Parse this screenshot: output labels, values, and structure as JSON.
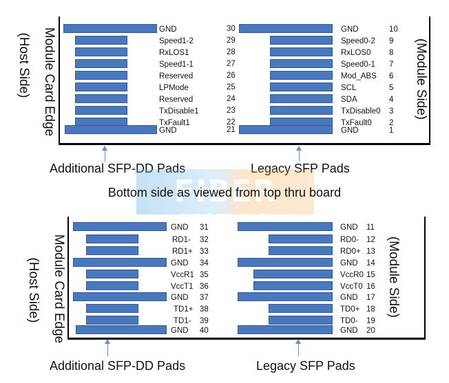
{
  "watermark": "FIBER WDM",
  "top": {
    "left_side_label": "Module Card Edge",
    "left_side_sublabel": "(Host Side)",
    "right_side_label": "(Module Side)",
    "left_caption": "Additional SFP-DD Pads",
    "right_caption": "Legacy SFP Pads",
    "left_pads": [
      {
        "label": "GND",
        "pin": "30"
      },
      {
        "label": "Speed1-2",
        "pin": "29"
      },
      {
        "label": "RxLOS1",
        "pin": "28"
      },
      {
        "label": "Speed1-1",
        "pin": "27"
      },
      {
        "label": "Reserved",
        "pin": "26"
      },
      {
        "label": "LPMode",
        "pin": "25"
      },
      {
        "label": "Reserved",
        "pin": "24"
      },
      {
        "label": "TxDisable1",
        "pin": "23"
      },
      {
        "label": "TxFault1",
        "pin": "22"
      },
      {
        "label": "GND",
        "pin": "21"
      }
    ],
    "right_pads": [
      {
        "label": "GND",
        "pin": "10"
      },
      {
        "label": "Speed0-2",
        "pin": "9"
      },
      {
        "label": "RxLOS0",
        "pin": "8"
      },
      {
        "label": "Speed0-1",
        "pin": "7"
      },
      {
        "label": "Mod_ABS",
        "pin": "6"
      },
      {
        "label": "SCL",
        "pin": "5"
      },
      {
        "label": "SDA",
        "pin": "4"
      },
      {
        "label": "TxDisable0",
        "pin": "3"
      },
      {
        "label": "TxFault0",
        "pin": "2"
      },
      {
        "label": "GND",
        "pin": "1"
      }
    ]
  },
  "subtitle": "Bottom side as viewed from top thru board",
  "bottom": {
    "left_side_label": "Module Card Edge",
    "left_side_sublabel": "(Host Side)",
    "right_side_label": "(Module Side)",
    "left_caption": "Additional SFP-DD Pads",
    "right_caption": "Legacy SFP Pads",
    "left_pads": [
      {
        "label": "GND",
        "pin": "31"
      },
      {
        "label": "RD1-",
        "pin": "32"
      },
      {
        "label": "RD1+",
        "pin": "33"
      },
      {
        "label": "GND",
        "pin": "34"
      },
      {
        "label": "VccR1",
        "pin": "35"
      },
      {
        "label": "VccT1",
        "pin": "36"
      },
      {
        "label": "GND",
        "pin": "37"
      },
      {
        "label": "TD1+",
        "pin": "38"
      },
      {
        "label": "TD1-",
        "pin": "39"
      },
      {
        "label": "GND",
        "pin": "40"
      }
    ],
    "right_pads": [
      {
        "label": "GND",
        "pin": "11"
      },
      {
        "label": "RD0-",
        "pin": "12"
      },
      {
        "label": "RD0+",
        "pin": "13"
      },
      {
        "label": "GND",
        "pin": "14"
      },
      {
        "label": "VccR0",
        "pin": "15"
      },
      {
        "label": "VccT0",
        "pin": "16"
      },
      {
        "label": "GND",
        "pin": "17"
      },
      {
        "label": "TD0+",
        "pin": "18"
      },
      {
        "label": "TD0-",
        "pin": "19"
      },
      {
        "label": "GND",
        "pin": "20"
      }
    ]
  }
}
